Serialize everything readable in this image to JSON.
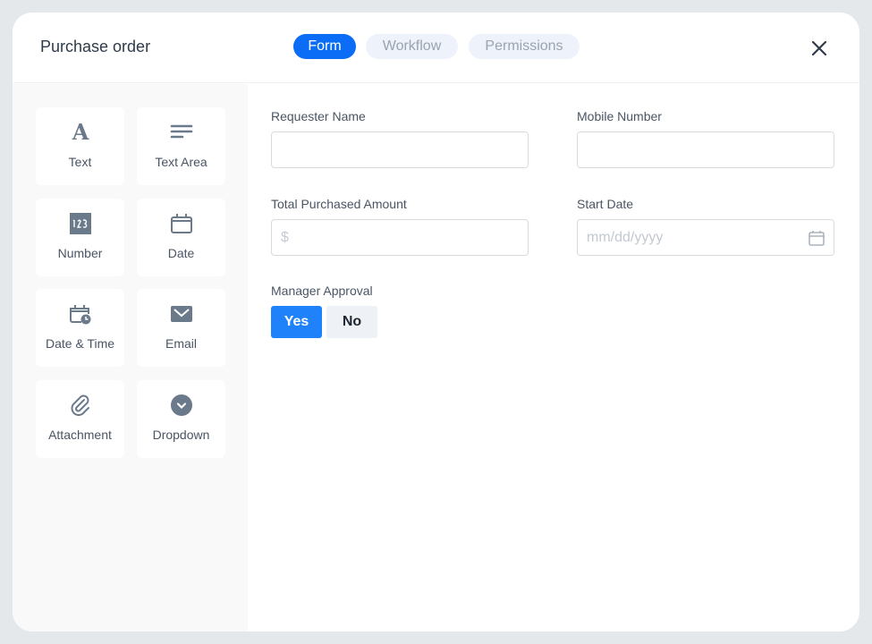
{
  "header": {
    "title": "Purchase order",
    "tabs": [
      {
        "label": "Form",
        "active": true
      },
      {
        "label": "Workflow",
        "active": false
      },
      {
        "label": "Permissions",
        "active": false
      }
    ],
    "close_icon": "close-icon"
  },
  "sidebar": {
    "items": [
      {
        "label": "Text",
        "icon": "text-icon"
      },
      {
        "label": "Text Area",
        "icon": "text-area-icon"
      },
      {
        "label": "Number",
        "icon": "number-icon"
      },
      {
        "label": "Date",
        "icon": "calendar-icon"
      },
      {
        "label": "Date & Time",
        "icon": "calendar-clock-icon"
      },
      {
        "label": "Email",
        "icon": "envelope-icon"
      },
      {
        "label": "Attachment",
        "icon": "paperclip-icon"
      },
      {
        "label": "Dropdown",
        "icon": "chevron-circle-icon"
      }
    ]
  },
  "form": {
    "requester_name": {
      "label": "Requester Name",
      "value": ""
    },
    "mobile_number": {
      "label": "Mobile Number",
      "value": ""
    },
    "total_amount": {
      "label": "Total Purchased Amount",
      "placeholder": "$"
    },
    "start_date": {
      "label": "Start Date",
      "placeholder": "mm/dd/yyyy"
    },
    "manager_approval": {
      "label": "Manager Approval",
      "options": [
        "Yes",
        "No"
      ],
      "selected": "Yes"
    }
  },
  "colors": {
    "accent": "#0b6cf5",
    "yes_button": "#1f82fa",
    "icon": "#6b7a8b"
  }
}
